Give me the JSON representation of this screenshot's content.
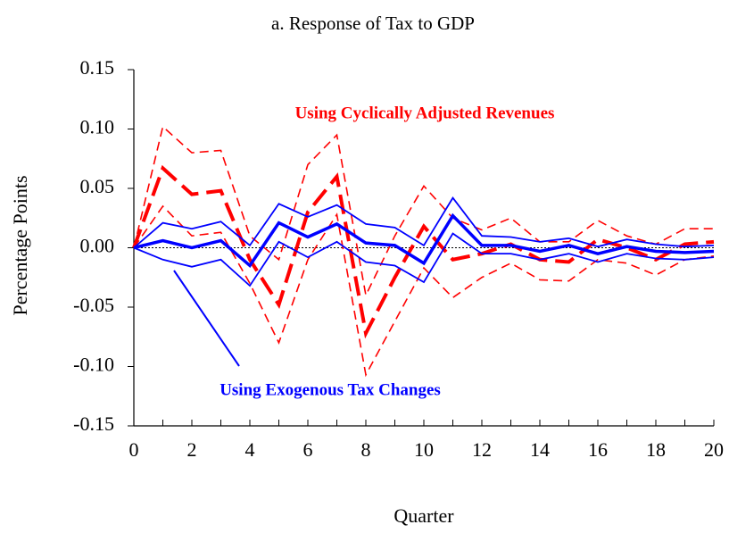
{
  "chart_data": {
    "type": "line",
    "title": "a.  Response of Tax to GDP",
    "xlabel": "Quarter",
    "ylabel": "Percentage Points",
    "x": [
      0,
      1,
      2,
      3,
      4,
      5,
      6,
      7,
      8,
      9,
      10,
      11,
      12,
      13,
      14,
      15,
      16,
      17,
      18,
      19,
      20
    ],
    "xlim": [
      0,
      20
    ],
    "xticks": [
      0,
      2,
      4,
      6,
      8,
      10,
      12,
      14,
      16,
      18,
      20
    ],
    "xminorticks": [
      1,
      3,
      5,
      7,
      9,
      11,
      13,
      15,
      17,
      19
    ],
    "ylim": [
      -0.15,
      0.15
    ],
    "yticks": [
      {
        "value": 0.15,
        "label": "0.15"
      },
      {
        "value": 0.1,
        "label": "0.10"
      },
      {
        "value": 0.05,
        "label": "0.05"
      },
      {
        "value": 0,
        "label": "0.00"
      },
      {
        "value": -0.05,
        "label": "-0.05"
      },
      {
        "value": -0.1,
        "label": "-0.10"
      },
      {
        "value": -0.15,
        "label": "-0.15"
      }
    ],
    "zeroline": true,
    "series": [
      {
        "color": "#ff0000",
        "width": 1.6,
        "dash": "short",
        "values": [
          0,
          0.102,
          0.08,
          0.082,
          0.01,
          -0.01,
          0.07,
          0.095,
          -0.04,
          0.01,
          0.052,
          0.025,
          0.015,
          0.025,
          0.005,
          0.005,
          0.023,
          0.01,
          0.003,
          0.016,
          0.016
        ]
      },
      {
        "color": "#ff0000",
        "width": 1.6,
        "dash": "short",
        "values": [
          0,
          0.035,
          0.01,
          0.013,
          -0.03,
          -0.08,
          -0.01,
          0.028,
          -0.107,
          -0.062,
          -0.017,
          -0.042,
          -0.025,
          -0.013,
          -0.027,
          -0.028,
          -0.01,
          -0.013,
          -0.023,
          -0.01,
          -0.007
        ]
      },
      {
        "color": "#ff0000",
        "width": 4,
        "dash": "long",
        "values": [
          0,
          0.067,
          0.045,
          0.048,
          -0.01,
          -0.048,
          0.03,
          0.06,
          -0.072,
          -0.025,
          0.018,
          -0.01,
          -0.005,
          0.003,
          -0.01,
          -0.012,
          0.007,
          0,
          -0.01,
          0.003,
          0.005
        ]
      },
      {
        "color": "#0000ff",
        "width": 1.8,
        "dash": "solid",
        "values": [
          0,
          0.021,
          0.016,
          0.022,
          0.002,
          0.037,
          0.026,
          0.036,
          0.02,
          0.017,
          0.002,
          0.042,
          0.01,
          0.009,
          0.005,
          0.008,
          0.001,
          0.007,
          0.003,
          0.001,
          0.002
        ]
      },
      {
        "color": "#0000ff",
        "width": 1.8,
        "dash": "solid",
        "values": [
          0,
          -0.01,
          -0.016,
          -0.01,
          -0.032,
          0.005,
          -0.008,
          0.005,
          -0.012,
          -0.015,
          -0.029,
          0.012,
          -0.005,
          -0.005,
          -0.01,
          -0.005,
          -0.012,
          -0.005,
          -0.009,
          -0.01,
          -0.008
        ]
      },
      {
        "color": "#0000ff",
        "width": 3.5,
        "dash": "solid",
        "values": [
          0,
          0.006,
          0,
          0.006,
          -0.015,
          0.021,
          0.009,
          0.02,
          0.004,
          0.002,
          -0.013,
          0.027,
          0.002,
          0.002,
          -0.003,
          0.002,
          -0.005,
          0.001,
          -0.003,
          -0.004,
          -0.003
        ]
      }
    ],
    "annotations": [
      {
        "text": "Using Cyclically Adjusted Revenues",
        "color": "#ff0000"
      },
      {
        "text": "Using Exogenous Tax Changes",
        "color": "#0000ff"
      }
    ]
  }
}
